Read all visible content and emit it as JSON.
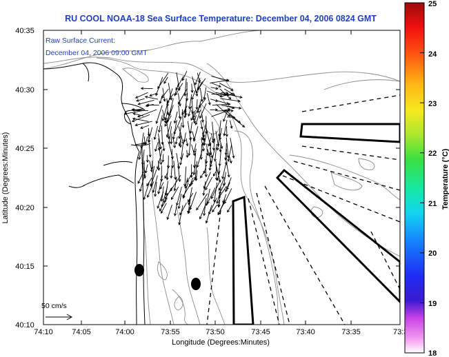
{
  "title": "RU COOL  NOAA-18  Sea Surface Temperature:  December 04, 2006 0824 GMT",
  "annotation": {
    "line1": "Raw Surface Current:",
    "line2": "December 04, 2006 09:00 GMT"
  },
  "scale_label": "50 cm/s",
  "colors": {
    "title_text": "#1f3fbf",
    "contour": "#8a8a8a",
    "coast": "#000000",
    "vectors": "#000000"
  },
  "chart_data": {
    "type": "map",
    "xlabel": "Longitude (Degrees:Minutes)",
    "ylabel": "Latitude (Degrees:Minutes)",
    "x_ticks": [
      "74:10",
      "74:05",
      "74:00",
      "73:55",
      "73:50",
      "73:45",
      "73:40",
      "73:35",
      "73:3"
    ],
    "y_ticks": [
      "40:35",
      "40:30",
      "40:25",
      "40:20",
      "40:15",
      "40:10"
    ],
    "x_range_deg_west": [
      74.1667,
      73.5
    ],
    "y_range_deg_north": [
      40.1667,
      40.5833
    ],
    "colorbar": {
      "label": "Temperature (°C)",
      "range": [
        18,
        25
      ],
      "ticks": [
        "18",
        "19",
        "20",
        "21",
        "22",
        "23",
        "24",
        "25"
      ]
    },
    "markers": [
      {
        "shape": "filled-ellipse",
        "lon_w": 73.9817,
        "lat_n": 40.2467
      },
      {
        "shape": "filled-ellipse",
        "lon_w": 73.8717,
        "lat_n": 40.225
      }
    ]
  }
}
